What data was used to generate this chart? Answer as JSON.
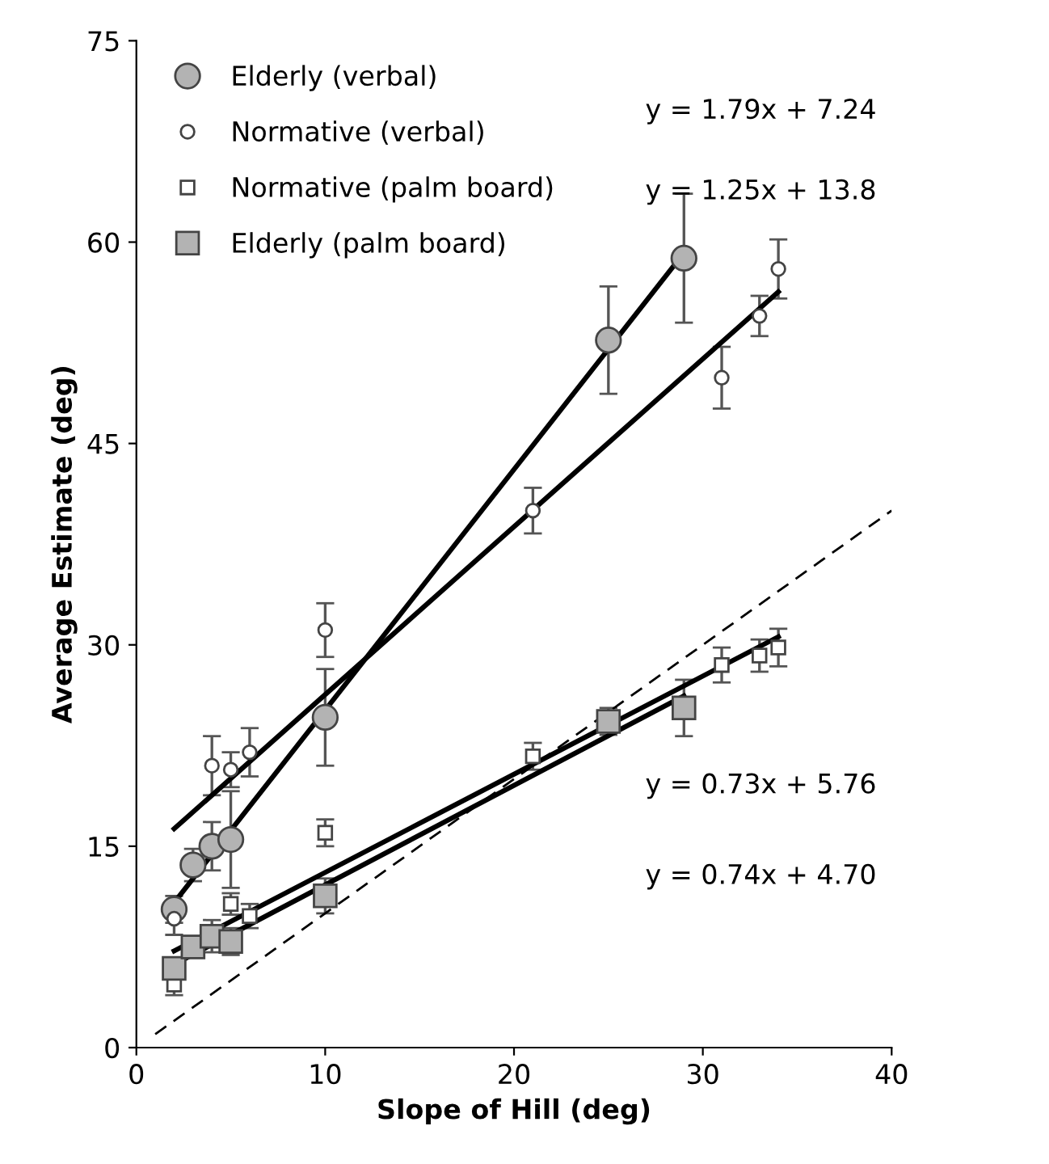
{
  "chart_data": {
    "type": "scatter",
    "xlabel": "Slope of Hill (deg)",
    "ylabel": "Average Estimate (deg)",
    "xlim": [
      0,
      40
    ],
    "ylim": [
      0,
      75
    ],
    "xticks": [
      0,
      10,
      20,
      30,
      40
    ],
    "yticks": [
      0,
      15,
      30,
      45,
      60,
      75
    ],
    "grid": false,
    "legend": "top left",
    "series": [
      {
        "name": "Elderly (verbal)",
        "marker": "circle",
        "color": "#b3b3b3",
        "x": [
          2,
          3,
          4,
          5,
          10,
          25,
          29
        ],
        "values": [
          10.3,
          13.6,
          15,
          15.5,
          24.6,
          52.7,
          58.8
        ],
        "errors": [
          1,
          1.2,
          1.8,
          3.6,
          3.6,
          4,
          4.8
        ]
      },
      {
        "name": "Normative (verbal)",
        "marker": "circle",
        "color": "#ffffff",
        "x": [
          2,
          4,
          5,
          6,
          10,
          21,
          31,
          33,
          34
        ],
        "values": [
          9.6,
          21,
          20.7,
          22,
          31.1,
          40,
          49.9,
          54.5,
          58
        ],
        "errors": [
          1.2,
          2.2,
          1.3,
          1.8,
          2,
          1.7,
          2.3,
          1.5,
          2.2
        ]
      },
      {
        "name": "Normative (palm board)",
        "marker": "square",
        "color": "#ffffff",
        "x": [
          2,
          4,
          5,
          6,
          10,
          21,
          31,
          33,
          34
        ],
        "values": [
          4.7,
          null,
          10.7,
          9.8,
          16,
          21.7,
          28.5,
          29.2,
          29.8
        ],
        "errors": [
          0.8,
          null,
          0.8,
          0.9,
          1,
          1,
          1.3,
          1.2,
          1.4
        ]
      },
      {
        "name": "Elderly (palm board)",
        "marker": "square",
        "color": "#b3b3b3",
        "x": [
          2,
          3,
          4,
          5,
          10,
          25,
          29
        ],
        "values": [
          5.9,
          7.5,
          8.3,
          7.9,
          11.3,
          24.3,
          25.3
        ],
        "errors": [
          0.8,
          0.8,
          1.2,
          1,
          1.3,
          1,
          2.1
        ]
      },
      {
        "type": "line",
        "color": "#000000",
        "line_style": "solid",
        "x": [
          2,
          29
        ],
        "values": [
          10.8,
          59.2
        ]
      },
      {
        "type": "line",
        "color": "#000000",
        "line_style": "solid",
        "x": [
          2,
          34
        ],
        "values": [
          16.3,
          56.3
        ]
      },
      {
        "type": "line",
        "color": "#000000",
        "line_style": "solid",
        "x": [
          2,
          34
        ],
        "values": [
          7.2,
          30.6
        ]
      },
      {
        "type": "line",
        "color": "#000000",
        "line_style": "solid",
        "x": [
          2,
          29
        ],
        "values": [
          6.2,
          26.2
        ]
      },
      {
        "type": "line",
        "color": "#000000",
        "line_style": "dashed",
        "x": [
          1,
          40
        ],
        "values": [
          1,
          40
        ]
      }
    ],
    "annotations": [
      "y = 1.79x + 7.24",
      "y = 1.25x + 13.8",
      "y = 0.73x + 5.76",
      "y = 0.74x + 4.70"
    ]
  }
}
